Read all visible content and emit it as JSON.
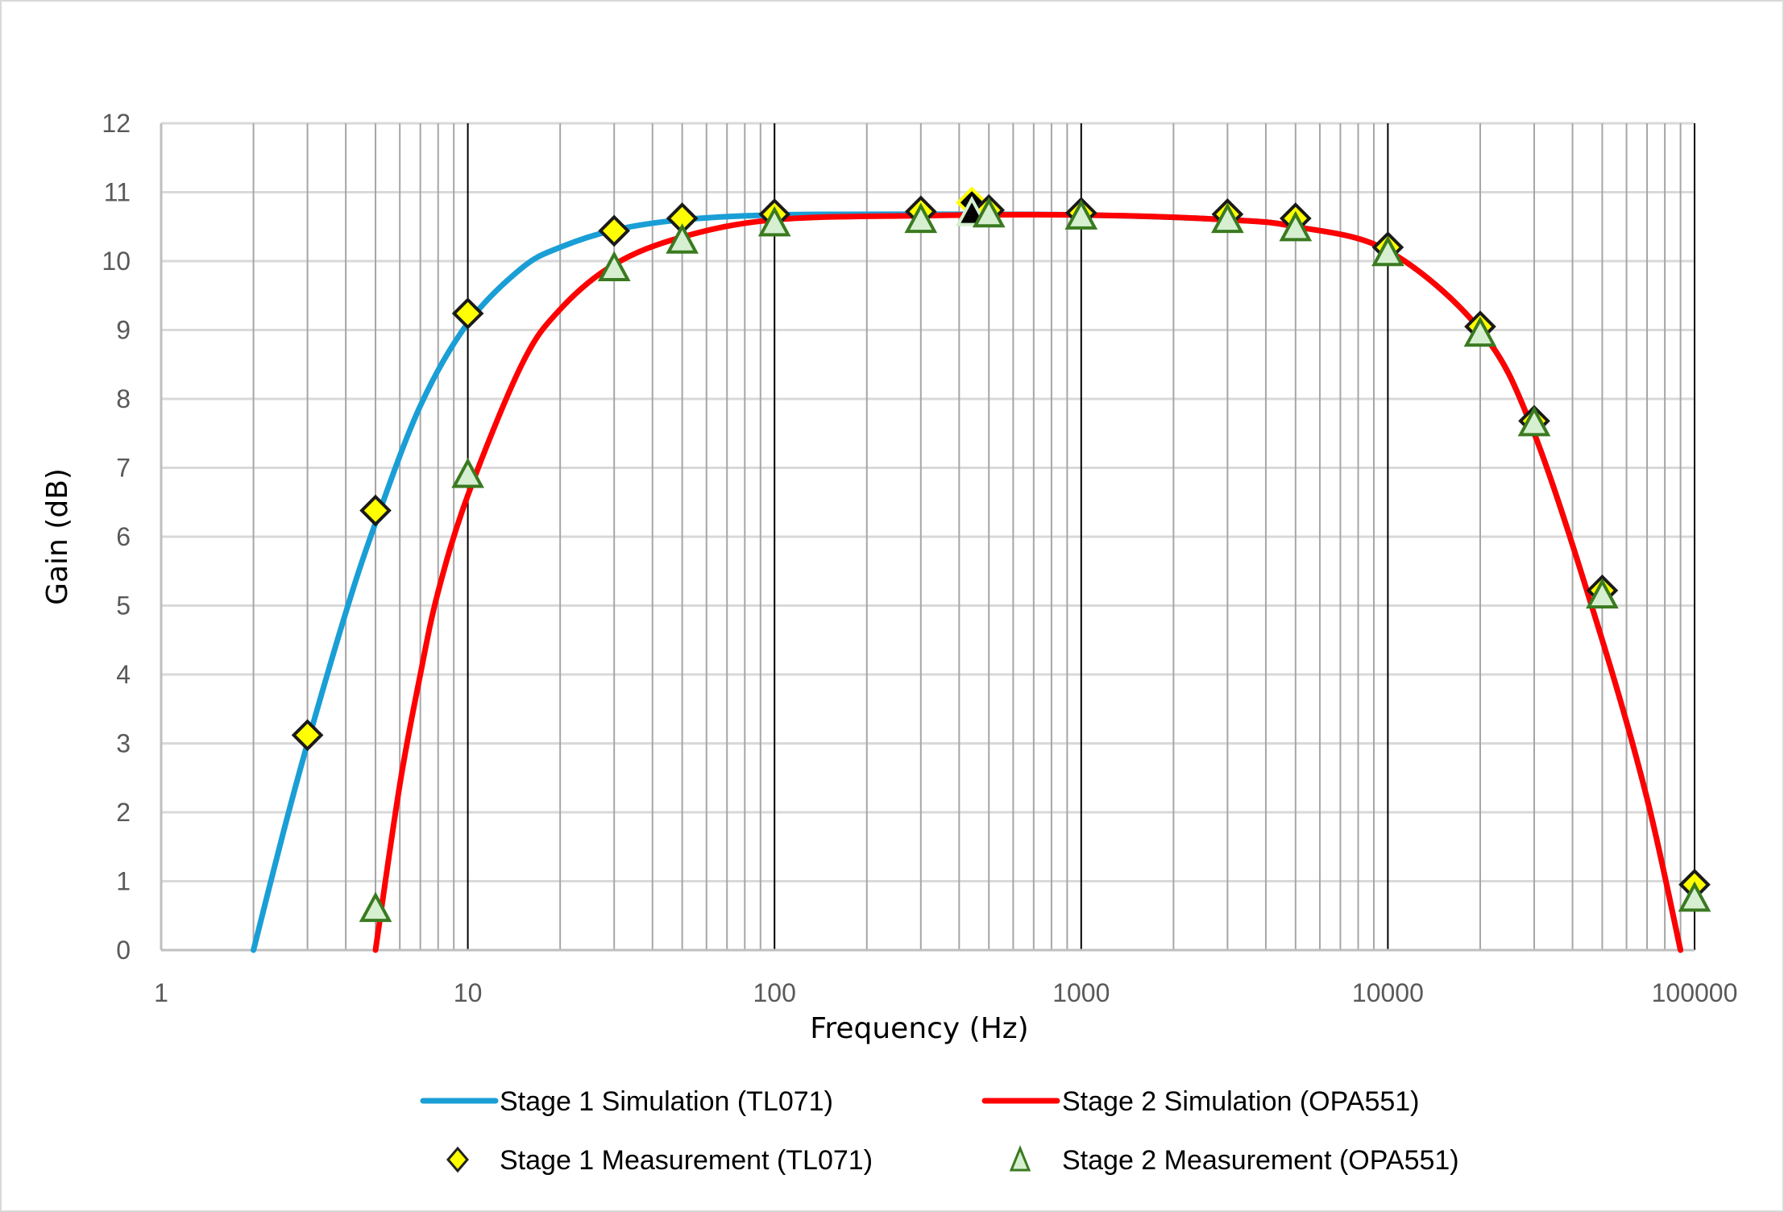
{
  "chart_data": {
    "type": "scatter",
    "title": "",
    "xlabel": "Frequency (Hz)",
    "ylabel": "Gain (dB)",
    "xscale": "log",
    "xlim": [
      1,
      100000
    ],
    "ylim": [
      0,
      12
    ],
    "x_ticks": [
      "1",
      "10",
      "100",
      "1000",
      "10000",
      "100000"
    ],
    "y_ticks": [
      "0",
      "1",
      "2",
      "3",
      "4",
      "5",
      "6",
      "7",
      "8",
      "9",
      "10",
      "11",
      "12"
    ],
    "grid": true,
    "legend_position": "bottom",
    "series": [
      {
        "name": "Stage 1 Simulation (TL071)",
        "kind": "line",
        "color": "#1a9ed6",
        "x": [
          2,
          2.5,
          3,
          4,
          5,
          7,
          10,
          15,
          20,
          30,
          50,
          100,
          300,
          1000,
          3000,
          5000,
          10000,
          20000,
          30000,
          50000,
          70000,
          90000
        ],
        "values": [
          0,
          1.7,
          3.0,
          4.9,
          6.2,
          7.9,
          9.1,
          9.9,
          10.2,
          10.45,
          10.6,
          10.67,
          10.68,
          10.67,
          10.6,
          10.5,
          10.15,
          9.0,
          7.5,
          4.5,
          2.2,
          0
        ]
      },
      {
        "name": "Stage 2 Simulation (OPA551)",
        "kind": "line",
        "color": "#ff0000",
        "x": [
          5,
          6,
          7,
          8,
          10,
          15,
          20,
          30,
          50,
          100,
          300,
          1000,
          3000,
          5000,
          10000,
          20000,
          30000,
          50000,
          70000,
          90000
        ],
        "values": [
          0,
          2.4,
          4.0,
          5.2,
          6.6,
          8.5,
          9.3,
          9.95,
          10.35,
          10.6,
          10.66,
          10.67,
          10.6,
          10.5,
          10.15,
          9.0,
          7.5,
          4.5,
          2.2,
          0
        ]
      },
      {
        "name": "Stage 1 Measurement (TL071)",
        "kind": "marker",
        "marker": "diamond",
        "color": "#ffff00",
        "x": [
          3,
          5,
          10,
          30,
          50,
          100,
          300,
          440,
          500,
          1000,
          3000,
          5000,
          10000,
          20000,
          30000,
          50000,
          100000
        ],
        "values": [
          3.12,
          6.38,
          9.24,
          10.44,
          10.62,
          10.68,
          10.72,
          10.85,
          10.74,
          10.7,
          10.68,
          10.62,
          10.2,
          9.05,
          7.68,
          5.22,
          0.95
        ]
      },
      {
        "name": "Stage 2 Measurement (OPA551)",
        "kind": "marker",
        "marker": "triangle",
        "color": "#d6efd0",
        "x": [
          5,
          10,
          30,
          50,
          100,
          300,
          440,
          500,
          1000,
          3000,
          5000,
          10000,
          20000,
          30000,
          50000,
          100000
        ],
        "values": [
          0.6,
          6.9,
          9.9,
          10.3,
          10.55,
          10.6,
          10.7,
          10.68,
          10.65,
          10.6,
          10.48,
          10.12,
          8.95,
          7.65,
          5.15,
          0.75
        ]
      }
    ],
    "annotations": [
      "Highlighted (black) markers near 440 Hz for both measurement series"
    ]
  },
  "legend": {
    "items": [
      {
        "label": "Stage 1 Simulation (TL071)"
      },
      {
        "label": "Stage 2 Simulation (OPA551)"
      },
      {
        "label": "Stage 1 Measurement (TL071)"
      },
      {
        "label": "Stage 2 Measurement (OPA551)"
      }
    ]
  },
  "axes": {
    "x_title": "Frequency (Hz)",
    "y_title": "Gain (dB)"
  }
}
